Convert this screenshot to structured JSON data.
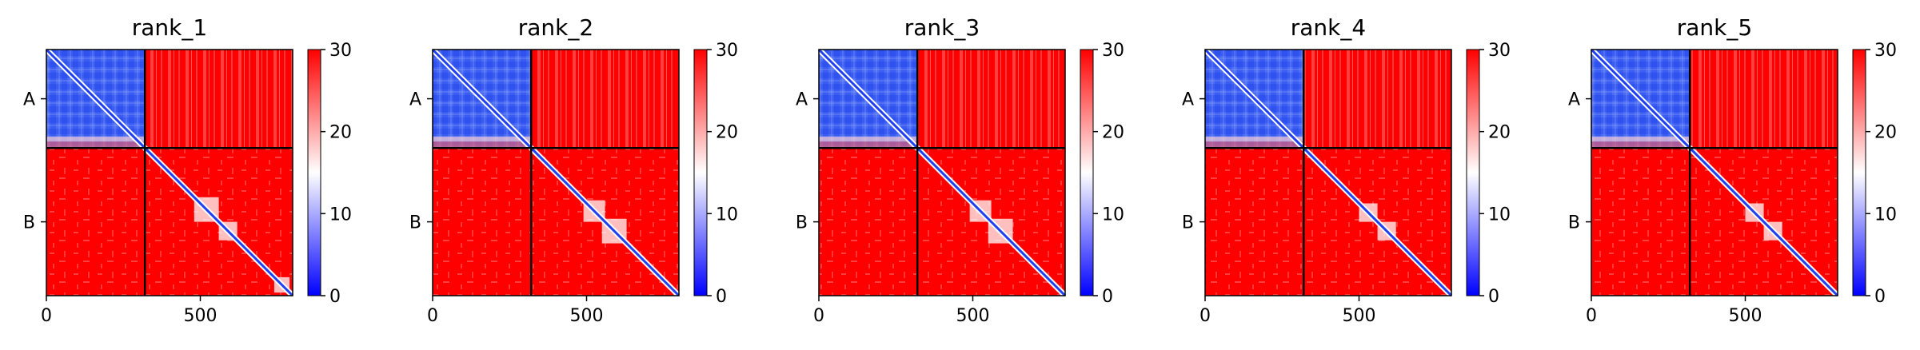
{
  "chart_data": [
    {
      "type": "heatmap",
      "title": "rank_1",
      "xlabel": "",
      "ylabel": "",
      "x_ticks": [
        0,
        500
      ],
      "xlim": [
        0,
        800
      ],
      "chain_boundary": 320,
      "chains": [
        "A",
        "B"
      ],
      "colorbar": {
        "range": [
          0,
          30
        ],
        "ticks": [
          0,
          10,
          20,
          30
        ],
        "colors": [
          "#0000ff",
          "#ffffff",
          "#ff0000"
        ]
      },
      "diagonal_domains": [
        [
          480,
          560
        ],
        [
          560,
          620
        ],
        [
          740,
          790
        ]
      ]
    },
    {
      "type": "heatmap",
      "title": "rank_2",
      "xlabel": "",
      "ylabel": "",
      "x_ticks": [
        0,
        500
      ],
      "xlim": [
        0,
        800
      ],
      "chain_boundary": 320,
      "chains": [
        "A",
        "B"
      ],
      "colorbar": {
        "range": [
          0,
          30
        ],
        "ticks": [
          0,
          10,
          20,
          30
        ],
        "colors": [
          "#0000ff",
          "#ffffff",
          "#ff0000"
        ]
      },
      "diagonal_domains": [
        [
          490,
          560
        ],
        [
          550,
          630
        ]
      ]
    },
    {
      "type": "heatmap",
      "title": "rank_3",
      "xlabel": "",
      "ylabel": "",
      "x_ticks": [
        0,
        500
      ],
      "xlim": [
        0,
        800
      ],
      "chain_boundary": 320,
      "chains": [
        "A",
        "B"
      ],
      "colorbar": {
        "range": [
          0,
          30
        ],
        "ticks": [
          0,
          10,
          20,
          30
        ],
        "colors": [
          "#0000ff",
          "#ffffff",
          "#ff0000"
        ]
      },
      "diagonal_domains": [
        [
          490,
          560
        ],
        [
          550,
          630
        ]
      ]
    },
    {
      "type": "heatmap",
      "title": "rank_4",
      "xlabel": "",
      "ylabel": "",
      "x_ticks": [
        0,
        500
      ],
      "xlim": [
        0,
        800
      ],
      "chain_boundary": 320,
      "chains": [
        "A",
        "B"
      ],
      "colorbar": {
        "range": [
          0,
          30
        ],
        "ticks": [
          0,
          10,
          20,
          30
        ],
        "colors": [
          "#0000ff",
          "#ffffff",
          "#ff0000"
        ]
      },
      "diagonal_domains": [
        [
          500,
          560
        ],
        [
          560,
          620
        ]
      ]
    },
    {
      "type": "heatmap",
      "title": "rank_5",
      "xlabel": "",
      "ylabel": "",
      "x_ticks": [
        0,
        500
      ],
      "xlim": [
        0,
        800
      ],
      "chain_boundary": 320,
      "chains": [
        "A",
        "B"
      ],
      "colorbar": {
        "range": [
          0,
          30
        ],
        "ticks": [
          0,
          10,
          20,
          30
        ],
        "colors": [
          "#0000ff",
          "#ffffff",
          "#ff0000"
        ]
      },
      "diagonal_domains": [
        [
          500,
          560
        ],
        [
          560,
          620
        ]
      ]
    }
  ]
}
